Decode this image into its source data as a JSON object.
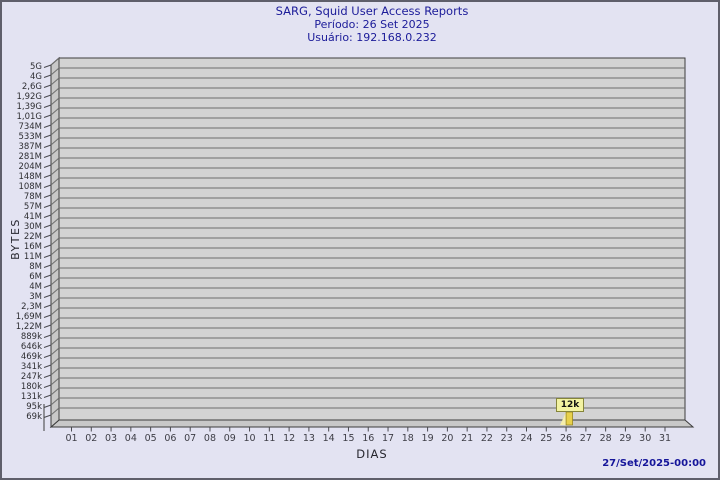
{
  "footer": {
    "timestamp": "27/Set/2025-00:00"
  },
  "chart_data": {
    "type": "bar",
    "title": "SARG, Squid User Access Reports",
    "subtitle1": "Período: 26 Set 2025",
    "subtitle2": "Usuário: 192.168.0.232",
    "xlabel": "DIAS",
    "ylabel": "BYTES",
    "grid": true,
    "legend_position": "none",
    "y_scale": "log",
    "y_tick_labels": [
      "5G",
      "4G",
      "2,6G",
      "1,92G",
      "1,39G",
      "1,01G",
      "734M",
      "533M",
      "387M",
      "281M",
      "204M",
      "148M",
      "108M",
      "78M",
      "57M",
      "41M",
      "30M",
      "22M",
      "16M",
      "11M",
      "8M",
      "6M",
      "4M",
      "3M",
      "2,3M",
      "1,69M",
      "1,22M",
      "889k",
      "646k",
      "469k",
      "341k",
      "247k",
      "180k",
      "131k",
      "95k",
      "69k"
    ],
    "categories": [
      "01",
      "02",
      "03",
      "04",
      "05",
      "06",
      "07",
      "08",
      "09",
      "10",
      "11",
      "12",
      "13",
      "14",
      "15",
      "16",
      "17",
      "18",
      "19",
      "20",
      "21",
      "22",
      "23",
      "24",
      "25",
      "26",
      "27",
      "28",
      "29",
      "30",
      "31"
    ],
    "series": [
      {
        "name": "BYTES",
        "values": [
          0,
          0,
          0,
          0,
          0,
          0,
          0,
          0,
          0,
          0,
          0,
          0,
          0,
          0,
          0,
          0,
          0,
          0,
          0,
          0,
          0,
          0,
          0,
          0,
          0,
          12000,
          0,
          0,
          0,
          0,
          0
        ]
      }
    ],
    "point_label": {
      "day": "26",
      "text": "12k"
    },
    "colors": {
      "background": "#e3e3f2",
      "plot_bg": "#d3d3d3",
      "wall": "#c8c8c8",
      "grid": "#6e6e6e",
      "edge": "#3c3c3c",
      "bar": "#e7d04c",
      "bar_light": "#f6efad",
      "bar_edge": "#8c7c1a",
      "label_bg": "#f2f2a2",
      "label_border": "#85853a",
      "title_text": "#1b1b99"
    }
  }
}
